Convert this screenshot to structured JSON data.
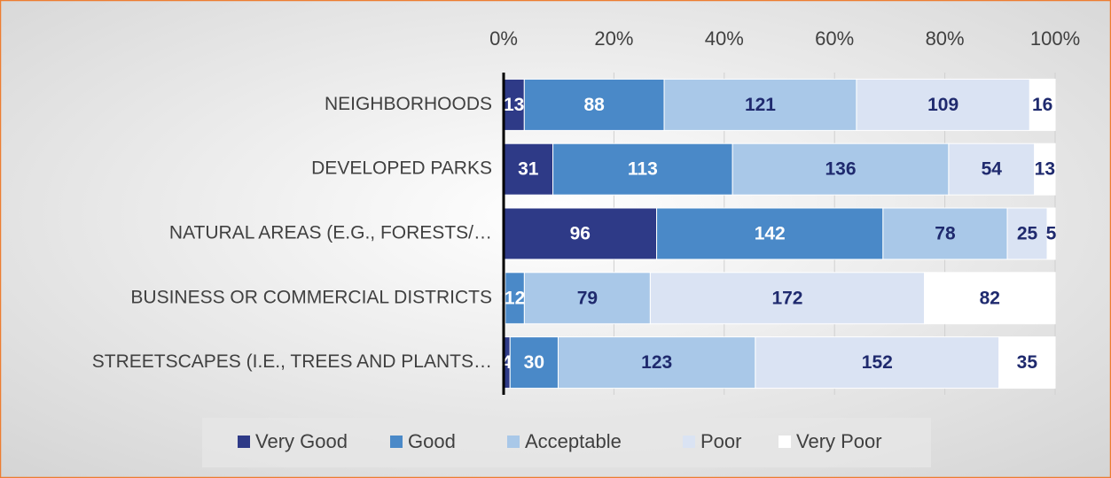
{
  "chart_data": {
    "type": "stacked-bar-percent",
    "categories": [
      "NEIGHBORHOODS",
      "DEVELOPED PARKS",
      "NATURAL AREAS (E.G., FORESTS/…",
      "BUSINESS OR COMMERCIAL DISTRICTS",
      "STREETSCAPES (I.E., TREES AND PLANTS…"
    ],
    "series": [
      {
        "name": "Very Good",
        "color": "#2e3a87",
        "values": [
          13,
          31,
          96,
          1,
          4
        ]
      },
      {
        "name": "Good",
        "color": "#4a89c8",
        "values": [
          88,
          113,
          142,
          12,
          30
        ]
      },
      {
        "name": "Acceptable",
        "color": "#a9c8e8",
        "values": [
          121,
          136,
          78,
          79,
          123
        ]
      },
      {
        "name": "Poor",
        "color": "#dae3f3",
        "values": [
          109,
          54,
          25,
          172,
          152
        ]
      },
      {
        "name": "Very Poor",
        "color": "#ffffff",
        "values": [
          16,
          13,
          5,
          82,
          35
        ]
      }
    ],
    "xlim": [
      0,
      100
    ],
    "xticks": [
      {
        "value": 0,
        "label": "0%"
      },
      {
        "value": 20,
        "label": "20%"
      },
      {
        "value": 40,
        "label": "40%"
      },
      {
        "value": 60,
        "label": "60%"
      },
      {
        "value": 80,
        "label": "80%"
      },
      {
        "value": 100,
        "label": "100%"
      }
    ],
    "grid": true,
    "legend": "bottom"
  }
}
